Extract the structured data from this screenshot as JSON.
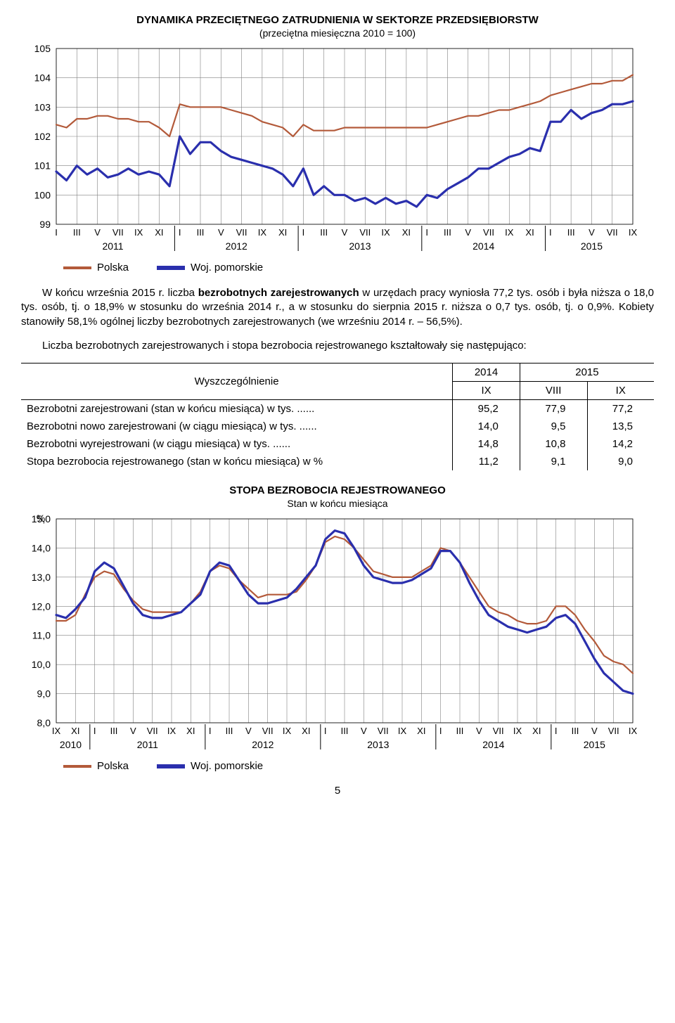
{
  "chart1": {
    "type": "line",
    "title": "DYNAMIKA  PRZECIĘTNEGO  ZATRUDNIENIA  W  SEKTORZE  PRZEDSIĘBIORSTW",
    "subtitle": "(przeciętna miesięczna 2010 = 100)",
    "x_years": [
      "2011",
      "2012",
      "2013",
      "2014",
      "2015"
    ],
    "x_ticks_per_year": [
      "I",
      "III",
      "V",
      "VII",
      "IX",
      "XI"
    ],
    "x_ticks_last_year": [
      "I",
      "III",
      "V",
      "VII",
      "IX"
    ],
    "ylim": [
      99,
      105
    ],
    "ytick_step": 1,
    "grid_color": "#808080",
    "background_color": "#ffffff",
    "series": [
      {
        "name": "Polska",
        "color": "#b35a3a",
        "width": 2.2,
        "y": [
          102.4,
          102.3,
          102.6,
          102.6,
          102.7,
          102.7,
          102.6,
          102.6,
          102.5,
          102.5,
          102.3,
          102.0,
          103.1,
          103.0,
          103.0,
          103.0,
          103.0,
          102.9,
          102.8,
          102.7,
          102.5,
          102.4,
          102.3,
          102.0,
          102.4,
          102.2,
          102.2,
          102.2,
          102.3,
          102.3,
          102.3,
          102.3,
          102.3,
          102.3,
          102.3,
          102.3,
          102.3,
          102.4,
          102.5,
          102.6,
          102.7,
          102.7,
          102.8,
          102.9,
          102.9,
          103.0,
          103.1,
          103.2,
          103.4,
          103.5,
          103.6,
          103.7,
          103.8,
          103.8,
          103.9,
          103.9,
          104.1
        ]
      },
      {
        "name": "Woj. pomorskie",
        "color": "#2a2fad",
        "width": 3.2,
        "y": [
          100.8,
          100.5,
          101.0,
          100.7,
          100.9,
          100.6,
          100.7,
          100.9,
          100.7,
          100.8,
          100.7,
          100.3,
          102.0,
          101.4,
          101.8,
          101.8,
          101.5,
          101.3,
          101.2,
          101.1,
          101.0,
          100.9,
          100.7,
          100.3,
          100.9,
          100.0,
          100.3,
          100.0,
          100.0,
          99.8,
          99.9,
          99.7,
          99.9,
          99.7,
          99.8,
          99.6,
          100.0,
          99.9,
          100.2,
          100.4,
          100.6,
          100.9,
          100.9,
          101.1,
          101.3,
          101.4,
          101.6,
          101.5,
          102.5,
          102.5,
          102.9,
          102.6,
          102.8,
          102.9,
          103.1,
          103.1,
          103.2
        ]
      }
    ]
  },
  "para1_pre": "W końcu września 2015 r. liczba ",
  "para1_bold": "bezrobotnych zarejestrowanych",
  "para1_post": " w urzędach pracy wyniosła 77,2 tys. osób i była niższa o 18,0 tys. osób, tj. o 18,9% w stosunku do września 2014 r., a w stosunku do sierpnia 2015 r. niższa o 0,7 tys. osób, tj. o 0,9%. Kobiety stanowiły 58,1% ogólnej liczby bezrobotnych zarejestrowanych (we wrześniu 2014 r. – 56,5%).",
  "para2": "Liczba bezrobotnych zarejestrowanych i stopa bezrobocia rejestrowanego kształtowały się następująco:",
  "table": {
    "header_label": "Wyszczególnienie",
    "year1": "2014",
    "year2": "2015",
    "sub1": "IX",
    "sub2": "VIII",
    "sub3": "IX",
    "rows": [
      {
        "label": "Bezrobotni zarejestrowani (stan w końcu miesiąca) w tys. ......",
        "c1": "95,2",
        "c2": "77,9",
        "c3": "77,2"
      },
      {
        "label": "Bezrobotni nowo zarejestrowani (w ciągu miesiąca) w tys. ......",
        "c1": "14,0",
        "c2": "9,5",
        "c3": "13,5"
      },
      {
        "label": "Bezrobotni wyrejestrowani (w ciągu miesiąca) w tys. ......",
        "c1": "14,8",
        "c2": "10,8",
        "c3": "14,2"
      },
      {
        "label": "Stopa bezrobocia rejestrowanego (stan w końcu miesiąca) w %",
        "c1": "11,2",
        "c2": "9,1",
        "c3": "9,0"
      }
    ]
  },
  "chart2": {
    "type": "line",
    "title": "STOPA  BEZROBOCIA  REJESTROWANEGO",
    "subtitle": "Stan w końcu miesiąca",
    "yaxis_label": "%",
    "x_first_year": "2010",
    "x_first_year_ticks": [
      "IX",
      "XI"
    ],
    "x_years": [
      "2011",
      "2012",
      "2013",
      "2014",
      "2015"
    ],
    "x_ticks_per_year": [
      "I",
      "III",
      "V",
      "VII",
      "IX",
      "XI"
    ],
    "x_ticks_last_year": [
      "I",
      "III",
      "V",
      "VII",
      "IX"
    ],
    "ylim": [
      8.0,
      15.0
    ],
    "ytick_step": 1.0,
    "grid_color": "#808080",
    "background_color": "#ffffff",
    "series": [
      {
        "name": "Polska",
        "color": "#b35a3a",
        "width": 2.2,
        "y": [
          11.5,
          11.5,
          11.7,
          12.4,
          13.0,
          13.2,
          13.1,
          12.6,
          12.2,
          11.9,
          11.8,
          11.8,
          11.8,
          11.8,
          12.1,
          12.5,
          13.2,
          13.4,
          13.3,
          12.9,
          12.6,
          12.3,
          12.4,
          12.4,
          12.4,
          12.5,
          12.9,
          13.4,
          14.2,
          14.4,
          14.3,
          14.0,
          13.6,
          13.2,
          13.1,
          13.0,
          13.0,
          13.0,
          13.2,
          13.4,
          14.0,
          13.9,
          13.5,
          13.0,
          12.5,
          12.0,
          11.8,
          11.7,
          11.5,
          11.4,
          11.4,
          11.5,
          12.0,
          12.0,
          11.7,
          11.2,
          10.8,
          10.3,
          10.1,
          10.0,
          9.7
        ]
      },
      {
        "name": "Woj. pomorskie",
        "color": "#2a2fad",
        "width": 3.2,
        "y": [
          11.7,
          11.6,
          11.9,
          12.3,
          13.2,
          13.5,
          13.3,
          12.7,
          12.1,
          11.7,
          11.6,
          11.6,
          11.7,
          11.8,
          12.1,
          12.4,
          13.2,
          13.5,
          13.4,
          12.9,
          12.4,
          12.1,
          12.1,
          12.2,
          12.3,
          12.6,
          13.0,
          13.4,
          14.3,
          14.6,
          14.5,
          14.0,
          13.4,
          13.0,
          12.9,
          12.8,
          12.8,
          12.9,
          13.1,
          13.3,
          13.9,
          13.9,
          13.5,
          12.8,
          12.2,
          11.7,
          11.5,
          11.3,
          11.2,
          11.1,
          11.2,
          11.3,
          11.6,
          11.7,
          11.4,
          10.8,
          10.2,
          9.7,
          9.4,
          9.1,
          9.0
        ]
      }
    ]
  },
  "page_number": "5"
}
